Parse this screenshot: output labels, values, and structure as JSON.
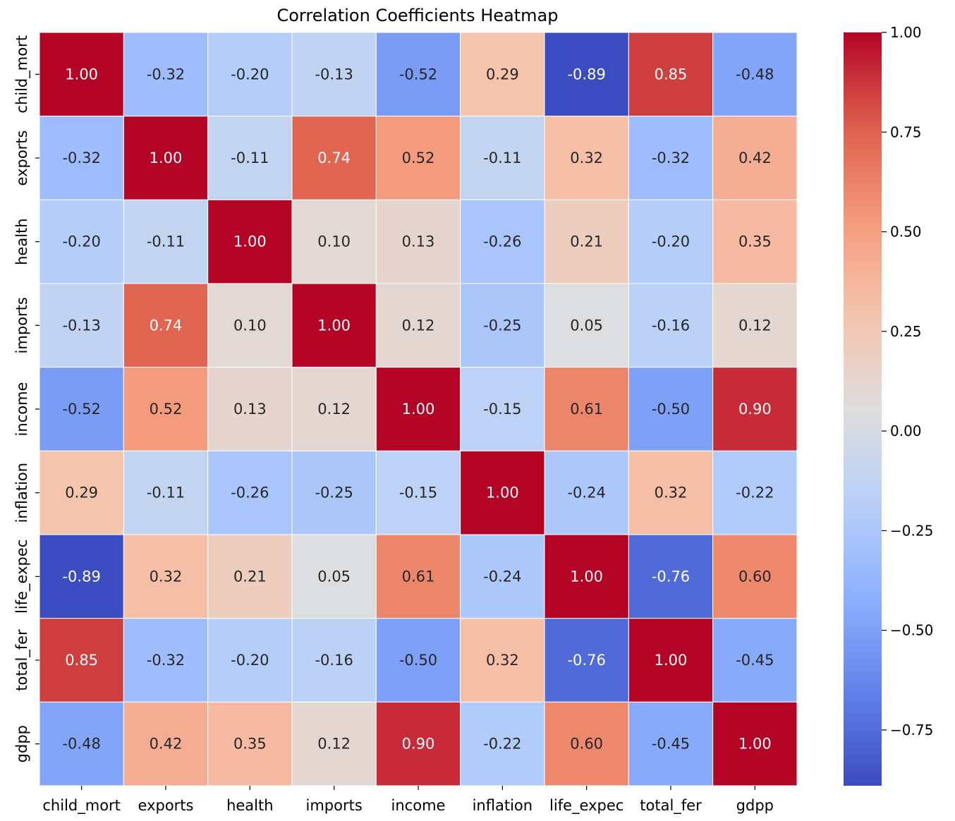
{
  "chart_data": {
    "type": "heatmap",
    "title": "Correlation Coefficients Heatmap",
    "xlabel": "",
    "ylabel": "",
    "colormap": "coolwarm",
    "vmin": -0.89,
    "vmax": 1.0,
    "annot_format": "0.00",
    "grid": true,
    "grid_color": "#ffffff",
    "x_labels": [
      "child_mort",
      "exports",
      "health",
      "imports",
      "income",
      "inflation",
      "life_expec",
      "total_fer",
      "gdpp"
    ],
    "y_labels": [
      "child_mort",
      "exports",
      "health",
      "imports",
      "income",
      "inflation",
      "life_expec",
      "total_fer",
      "gdpp"
    ],
    "values": [
      [
        1.0,
        -0.32,
        -0.2,
        -0.13,
        -0.52,
        0.29,
        -0.89,
        0.85,
        -0.48
      ],
      [
        -0.32,
        1.0,
        -0.11,
        0.74,
        0.52,
        -0.11,
        0.32,
        -0.32,
        0.42
      ],
      [
        -0.2,
        -0.11,
        1.0,
        0.1,
        0.13,
        -0.26,
        0.21,
        -0.2,
        0.35
      ],
      [
        -0.13,
        0.74,
        0.1,
        1.0,
        0.12,
        -0.25,
        0.05,
        -0.16,
        0.12
      ],
      [
        -0.52,
        0.52,
        0.13,
        0.12,
        1.0,
        -0.15,
        0.61,
        -0.5,
        0.9
      ],
      [
        0.29,
        -0.11,
        -0.26,
        -0.25,
        -0.15,
        1.0,
        -0.24,
        0.32,
        -0.22
      ],
      [
        -0.89,
        0.32,
        0.21,
        0.05,
        0.61,
        -0.24,
        1.0,
        -0.76,
        0.6
      ],
      [
        0.85,
        -0.32,
        -0.2,
        -0.16,
        -0.5,
        0.32,
        -0.76,
        1.0,
        -0.45
      ],
      [
        -0.48,
        0.42,
        0.35,
        0.12,
        0.9,
        -0.22,
        0.6,
        -0.45,
        1.0
      ]
    ],
    "colorbar": {
      "ticks": [
        1.0,
        0.75,
        0.5,
        0.25,
        0.0,
        -0.25,
        -0.5,
        -0.75
      ],
      "tick_labels": [
        "1.00",
        "0.75",
        "0.50",
        "0.25",
        "0.00",
        "−0.25",
        "−0.50",
        "−0.75"
      ]
    }
  }
}
